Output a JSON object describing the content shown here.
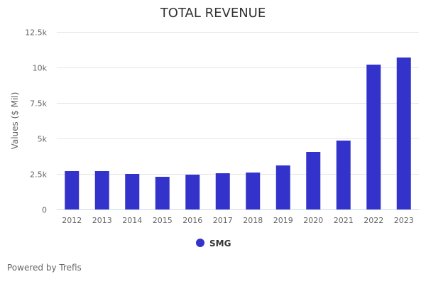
{
  "chart_data": {
    "type": "bar",
    "title": "TOTAL REVENUE",
    "xlabel": "",
    "ylabel": "Values ($ Mil)",
    "categories": [
      "2012",
      "2013",
      "2014",
      "2015",
      "2016",
      "2017",
      "2018",
      "2019",
      "2020",
      "2021",
      "2022",
      "2023"
    ],
    "series": [
      {
        "name": "SMG",
        "color": "#3333cc",
        "values": [
          2700,
          2700,
          2500,
          2300,
          2450,
          2550,
          2600,
          3100,
          4050,
          4850,
          10200,
          10700
        ]
      }
    ],
    "ylim": [
      0,
      12500
    ],
    "yticks": [
      0,
      2500,
      5000,
      7500,
      10000,
      12500
    ],
    "ytick_labels": [
      "0",
      "2.5k",
      "5k",
      "7.5k",
      "10k",
      "12.5k"
    ],
    "grid": true,
    "legend": "bottom-center"
  },
  "footer": {
    "text": "Powered by Trefis"
  }
}
